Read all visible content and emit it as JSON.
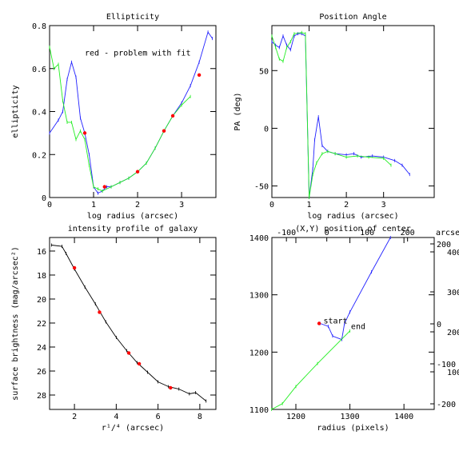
{
  "chart_data": [
    {
      "type": "line",
      "title": "Ellipticity",
      "xlabel": "log radius (arcsec)",
      "ylabel": "ellipticity",
      "xlim": [
        0,
        3.78
      ],
      "ylim": [
        0,
        0.8
      ],
      "xticks": [
        0,
        1,
        2,
        3
      ],
      "yticks": [
        0,
        0.2,
        0.4,
        0.6,
        0.8
      ],
      "annotations": [
        {
          "text": "red - problem with fit",
          "x": 0.8,
          "y": 0.66,
          "color": "#ff0000"
        }
      ],
      "series": [
        {
          "color": "#2222ff",
          "style": "line",
          "x": [
            0,
            0.2,
            0.3,
            0.4,
            0.5,
            0.6,
            0.7,
            0.8,
            0.9,
            1.0,
            1.1,
            1.2,
            1.3,
            1.4,
            1.6,
            1.8,
            2.0,
            2.2,
            2.4,
            2.6,
            2.8,
            3.0,
            3.2,
            3.4,
            3.6,
            3.7
          ],
          "y": [
            0.3,
            0.36,
            0.4,
            0.55,
            0.63,
            0.56,
            0.37,
            0.3,
            0.2,
            0.05,
            0.02,
            0.03,
            0.05,
            0.05,
            0.07,
            0.09,
            0.12,
            0.16,
            0.23,
            0.31,
            0.38,
            0.44,
            0.52,
            0.63,
            0.77,
            0.74
          ]
        },
        {
          "color": "#22ee22",
          "style": "line",
          "x": [
            0,
            0.1,
            0.2,
            0.3,
            0.4,
            0.5,
            0.6,
            0.7,
            0.8,
            0.9,
            1.0,
            1.1,
            1.2,
            1.4,
            1.6,
            1.8,
            2.0,
            2.2,
            2.4,
            2.6,
            2.8,
            3.0,
            3.2
          ],
          "y": [
            0.7,
            0.6,
            0.62,
            0.45,
            0.35,
            0.35,
            0.27,
            0.31,
            0.27,
            0.15,
            0.05,
            0.04,
            0.03,
            0.05,
            0.07,
            0.09,
            0.12,
            0.16,
            0.23,
            0.31,
            0.38,
            0.43,
            0.47
          ]
        },
        {
          "color": "#ff0000",
          "style": "points",
          "x": [
            0.8,
            1.25,
            2.0,
            2.6,
            2.8,
            3.4
          ],
          "y": [
            0.3,
            0.05,
            0.12,
            0.31,
            0.38,
            0.57
          ]
        }
      ]
    },
    {
      "type": "line",
      "title": "Position Angle",
      "xlabel": "log radius (arcsec)",
      "ylabel": "PA (deg)",
      "xlim": [
        0,
        4.36
      ],
      "ylim": [
        -60,
        89
      ],
      "xticks": [
        0,
        1,
        2,
        3
      ],
      "yticks": [
        -50,
        0,
        50
      ],
      "series": [
        {
          "color": "#2222ff",
          "style": "line",
          "x": [
            0,
            0.1,
            0.2,
            0.3,
            0.4,
            0.5,
            0.6,
            0.7,
            0.8,
            0.9,
            1.0,
            1.1,
            1.15,
            1.25,
            1.35,
            1.5,
            1.7,
            2.0,
            2.2,
            2.4,
            2.7,
            3.0,
            3.3,
            3.5,
            3.7
          ],
          "y": [
            75,
            72,
            70,
            80,
            72,
            68,
            80,
            82,
            82,
            80,
            -60,
            -35,
            -10,
            10,
            -15,
            -20,
            -22,
            -23,
            -22,
            -25,
            -24,
            -25,
            -28,
            -32,
            -40
          ]
        },
        {
          "color": "#22ee22",
          "style": "line",
          "x": [
            0,
            0.1,
            0.2,
            0.3,
            0.4,
            0.5,
            0.6,
            0.8,
            0.9,
            1.0,
            1.1,
            1.2,
            1.35,
            1.5,
            1.7,
            2.0,
            2.3,
            2.6,
            3.0,
            3.2
          ],
          "y": [
            80,
            70,
            60,
            58,
            70,
            75,
            82,
            83,
            82,
            -60,
            -40,
            -30,
            -22,
            -20,
            -22,
            -25,
            -24,
            -25,
            -26,
            -32
          ]
        }
      ]
    },
    {
      "type": "line",
      "title": "intensity profile of galaxy",
      "xlabel": "r¹/⁴ (arcsec)",
      "ylabel": "surface brightness (mag/arcsec²)",
      "xlim": [
        0.81,
        8.77
      ],
      "ylim": [
        29.2,
        14.87
      ],
      "xticks": [
        2,
        4,
        6,
        8
      ],
      "yticks": [
        16,
        18,
        20,
        22,
        24,
        26,
        28
      ],
      "series": [
        {
          "color": "#000000",
          "style": "line",
          "x": [
            0.9,
            1.4,
            1.6,
            2,
            2.5,
            3,
            3.5,
            4,
            4.5,
            5,
            5.5,
            6,
            6.5,
            7,
            7.5,
            7.8,
            8.3
          ],
          "y": [
            15.5,
            15.6,
            16.2,
            17.5,
            19.0,
            20.4,
            21.9,
            23.2,
            24.3,
            25.3,
            26.1,
            26.9,
            27.3,
            27.5,
            27.9,
            27.8,
            28.5
          ]
        },
        {
          "color": "#ff0000",
          "style": "points",
          "x": [
            2,
            3.2,
            4.6,
            5.1,
            6.6
          ],
          "y": [
            17.4,
            21.1,
            24.5,
            25.4,
            27.4
          ]
        }
      ]
    },
    {
      "type": "line",
      "title": "(X,Y) position of center",
      "xlabel": "radius (pixels)",
      "x2label": "arcsec",
      "xlim": [
        1155.6,
        1456
      ],
      "ylim": [
        1100,
        1400
      ],
      "xticks": [
        1200,
        1300,
        1400
      ],
      "yticks": [
        1100,
        1200,
        1300,
        1400
      ],
      "x2lim": [
        -136,
        266
      ],
      "x2ticks": [
        -100,
        0,
        100,
        200
      ],
      "y2lim": [
        -214,
        216
      ],
      "y2ticks": [
        -200,
        -100,
        0,
        200
      ],
      "y3lim": [
        6,
        436
      ],
      "y3ticks": [
        100,
        200,
        300,
        400
      ],
      "annotations": [
        {
          "text": "start",
          "x": 1251,
          "y": 1250,
          "color": "#4444ff"
        },
        {
          "text": "end",
          "x": 1302,
          "y": 1240,
          "color": "#22ee22"
        }
      ],
      "series": [
        {
          "color": "#2222ff",
          "style": "line",
          "x": [
            1245,
            1260,
            1268,
            1285,
            1290,
            1300,
            1340,
            1375
          ],
          "y": [
            1250,
            1245,
            1228,
            1222,
            1250,
            1270,
            1340,
            1400
          ]
        },
        {
          "color": "#22ee22",
          "style": "line",
          "x": [
            1155,
            1175,
            1200,
            1240,
            1300
          ],
          "y": [
            1100,
            1110,
            1140,
            1180,
            1237
          ]
        },
        {
          "color": "#ff0000",
          "style": "points",
          "x": [
            1243
          ],
          "y": [
            1250
          ]
        }
      ]
    }
  ]
}
